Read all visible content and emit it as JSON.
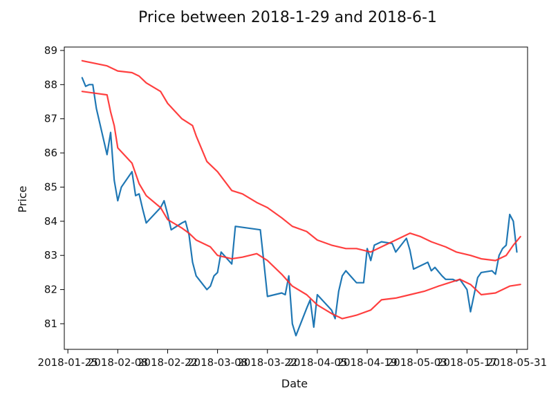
{
  "chart_data": {
    "type": "line",
    "title": "Price between 2018-1-29 and 2018-6-1",
    "xlabel": "Date",
    "ylabel": "Price",
    "xlim": [
      "2018-01-24",
      "2018-06-03"
    ],
    "ylim": [
      80.25,
      89.1
    ],
    "yticks": [
      81,
      82,
      83,
      84,
      85,
      86,
      87,
      88,
      89
    ],
    "xticks": [
      {
        "date": "2018-01-25",
        "label": "2018-01-25"
      },
      {
        "date": "2018-02-08",
        "label": "2018-02-08"
      },
      {
        "date": "2018-02-22",
        "label": "2018-02-22"
      },
      {
        "date": "2018-03-08",
        "label": "2018-03-08"
      },
      {
        "date": "2018-03-22",
        "label": "2018-03-22"
      },
      {
        "date": "2018-04-05",
        "label": "2018-04-05"
      },
      {
        "date": "2018-04-19",
        "label": "2018-04-19"
      },
      {
        "date": "2018-05-03",
        "label": "2018-05-03"
      },
      {
        "date": "2018-05-17",
        "label": "2018-05-17"
      },
      {
        "date": "2018-05-31",
        "label": "2018-05-31"
      }
    ],
    "grid": false,
    "series": [
      {
        "color": "#1f77b4",
        "points": [
          [
            "2018-01-29",
            88.2
          ],
          [
            "2018-01-30",
            87.95
          ],
          [
            "2018-01-31",
            88.0
          ],
          [
            "2018-02-01",
            88.0
          ],
          [
            "2018-02-02",
            87.3
          ],
          [
            "2018-02-05",
            85.95
          ],
          [
            "2018-02-06",
            86.6
          ],
          [
            "2018-02-07",
            85.2
          ],
          [
            "2018-02-08",
            84.6
          ],
          [
            "2018-02-09",
            85.0
          ],
          [
            "2018-02-12",
            85.45
          ],
          [
            "2018-02-13",
            84.75
          ],
          [
            "2018-02-14",
            84.8
          ],
          [
            "2018-02-15",
            84.35
          ],
          [
            "2018-02-16",
            83.95
          ],
          [
            "2018-02-20",
            84.4
          ],
          [
            "2018-02-21",
            84.6
          ],
          [
            "2018-02-22",
            84.2
          ],
          [
            "2018-02-23",
            83.75
          ],
          [
            "2018-02-26",
            83.95
          ],
          [
            "2018-02-27",
            84.0
          ],
          [
            "2018-02-28",
            83.6
          ],
          [
            "2018-03-01",
            82.8
          ],
          [
            "2018-03-02",
            82.4
          ],
          [
            "2018-03-05",
            82.0
          ],
          [
            "2018-03-06",
            82.1
          ],
          [
            "2018-03-07",
            82.4
          ],
          [
            "2018-03-08",
            82.5
          ],
          [
            "2018-03-09",
            83.1
          ],
          [
            "2018-03-12",
            82.75
          ],
          [
            "2018-03-13",
            83.85
          ],
          [
            "2018-03-20",
            83.75
          ],
          [
            "2018-03-21",
            82.8
          ],
          [
            "2018-03-22",
            81.8
          ],
          [
            "2018-03-26",
            81.9
          ],
          [
            "2018-03-27",
            81.85
          ],
          [
            "2018-03-28",
            82.4
          ],
          [
            "2018-03-29",
            81.0
          ],
          [
            "2018-03-30",
            80.65
          ],
          [
            "2018-04-02",
            81.45
          ],
          [
            "2018-04-03",
            81.7
          ],
          [
            "2018-04-04",
            80.9
          ],
          [
            "2018-04-05",
            81.85
          ],
          [
            "2018-04-09",
            81.4
          ],
          [
            "2018-04-10",
            81.15
          ],
          [
            "2018-04-11",
            81.95
          ],
          [
            "2018-04-12",
            82.4
          ],
          [
            "2018-04-13",
            82.55
          ],
          [
            "2018-04-16",
            82.2
          ],
          [
            "2018-04-18",
            82.2
          ],
          [
            "2018-04-19",
            83.2
          ],
          [
            "2018-04-20",
            82.85
          ],
          [
            "2018-04-21",
            83.3
          ],
          [
            "2018-04-23",
            83.4
          ],
          [
            "2018-04-26",
            83.35
          ],
          [
            "2018-04-27",
            83.1
          ],
          [
            "2018-04-30",
            83.5
          ],
          [
            "2018-05-01",
            83.15
          ],
          [
            "2018-05-02",
            82.6
          ],
          [
            "2018-05-05",
            82.75
          ],
          [
            "2018-05-06",
            82.8
          ],
          [
            "2018-05-07",
            82.55
          ],
          [
            "2018-05-08",
            82.65
          ],
          [
            "2018-05-10",
            82.4
          ],
          [
            "2018-05-11",
            82.3
          ],
          [
            "2018-05-13",
            82.3
          ],
          [
            "2018-05-14",
            82.25
          ],
          [
            "2018-05-15",
            82.3
          ],
          [
            "2018-05-17",
            82.0
          ],
          [
            "2018-05-18",
            81.35
          ],
          [
            "2018-05-20",
            82.35
          ],
          [
            "2018-05-21",
            82.5
          ],
          [
            "2018-05-24",
            82.55
          ],
          [
            "2018-05-25",
            82.45
          ],
          [
            "2018-05-26",
            83.0
          ],
          [
            "2018-05-27",
            83.2
          ],
          [
            "2018-05-28",
            83.3
          ],
          [
            "2018-05-29",
            84.2
          ],
          [
            "2018-05-30",
            84.0
          ],
          [
            "2018-05-31",
            83.1
          ]
        ]
      },
      {
        "color": "#ff2a2a",
        "points": [
          [
            "2018-01-29",
            88.7
          ],
          [
            "2018-02-05",
            88.55
          ],
          [
            "2018-02-08",
            88.4
          ],
          [
            "2018-02-12",
            88.35
          ],
          [
            "2018-02-14",
            88.25
          ],
          [
            "2018-02-16",
            88.05
          ],
          [
            "2018-02-20",
            87.8
          ],
          [
            "2018-02-22",
            87.45
          ],
          [
            "2018-02-26",
            87.0
          ],
          [
            "2018-03-01",
            86.8
          ],
          [
            "2018-03-02",
            86.5
          ],
          [
            "2018-03-05",
            85.75
          ],
          [
            "2018-03-08",
            85.45
          ],
          [
            "2018-03-12",
            84.9
          ],
          [
            "2018-03-15",
            84.8
          ],
          [
            "2018-03-19",
            84.55
          ],
          [
            "2018-03-22",
            84.4
          ],
          [
            "2018-03-26",
            84.1
          ],
          [
            "2018-03-29",
            83.85
          ],
          [
            "2018-04-02",
            83.7
          ],
          [
            "2018-04-05",
            83.45
          ],
          [
            "2018-04-09",
            83.3
          ],
          [
            "2018-04-13",
            83.2
          ],
          [
            "2018-04-16",
            83.2
          ],
          [
            "2018-04-20",
            83.1
          ],
          [
            "2018-04-24",
            83.3
          ],
          [
            "2018-04-27",
            83.45
          ],
          [
            "2018-05-01",
            83.65
          ],
          [
            "2018-05-04",
            83.55
          ],
          [
            "2018-05-07",
            83.4
          ],
          [
            "2018-05-11",
            83.25
          ],
          [
            "2018-05-14",
            83.1
          ],
          [
            "2018-05-18",
            83.0
          ],
          [
            "2018-05-21",
            82.9
          ],
          [
            "2018-05-25",
            82.85
          ],
          [
            "2018-05-28",
            83.0
          ],
          [
            "2018-05-30",
            83.3
          ],
          [
            "2018-06-01",
            83.55
          ]
        ]
      },
      {
        "color": "#ff2a2a",
        "points": [
          [
            "2018-01-29",
            87.8
          ],
          [
            "2018-02-05",
            87.7
          ],
          [
            "2018-02-06",
            87.2
          ],
          [
            "2018-02-07",
            86.8
          ],
          [
            "2018-02-08",
            86.15
          ],
          [
            "2018-02-12",
            85.7
          ],
          [
            "2018-02-14",
            85.1
          ],
          [
            "2018-02-16",
            84.75
          ],
          [
            "2018-02-20",
            84.4
          ],
          [
            "2018-02-22",
            84.05
          ],
          [
            "2018-02-26",
            83.8
          ],
          [
            "2018-02-28",
            83.65
          ],
          [
            "2018-03-02",
            83.45
          ],
          [
            "2018-03-06",
            83.25
          ],
          [
            "2018-03-08",
            83.0
          ],
          [
            "2018-03-12",
            82.9
          ],
          [
            "2018-03-15",
            82.95
          ],
          [
            "2018-03-19",
            83.05
          ],
          [
            "2018-03-22",
            82.85
          ],
          [
            "2018-03-26",
            82.45
          ],
          [
            "2018-03-29",
            82.1
          ],
          [
            "2018-04-02",
            81.85
          ],
          [
            "2018-04-05",
            81.55
          ],
          [
            "2018-04-09",
            81.3
          ],
          [
            "2018-04-12",
            81.15
          ],
          [
            "2018-04-16",
            81.25
          ],
          [
            "2018-04-20",
            81.4
          ],
          [
            "2018-04-23",
            81.7
          ],
          [
            "2018-04-27",
            81.75
          ],
          [
            "2018-05-01",
            81.85
          ],
          [
            "2018-05-05",
            81.95
          ],
          [
            "2018-05-09",
            82.1
          ],
          [
            "2018-05-12",
            82.2
          ],
          [
            "2018-05-15",
            82.3
          ],
          [
            "2018-05-18",
            82.15
          ],
          [
            "2018-05-21",
            81.85
          ],
          [
            "2018-05-25",
            81.9
          ],
          [
            "2018-05-29",
            82.1
          ],
          [
            "2018-06-01",
            82.15
          ]
        ]
      }
    ]
  }
}
